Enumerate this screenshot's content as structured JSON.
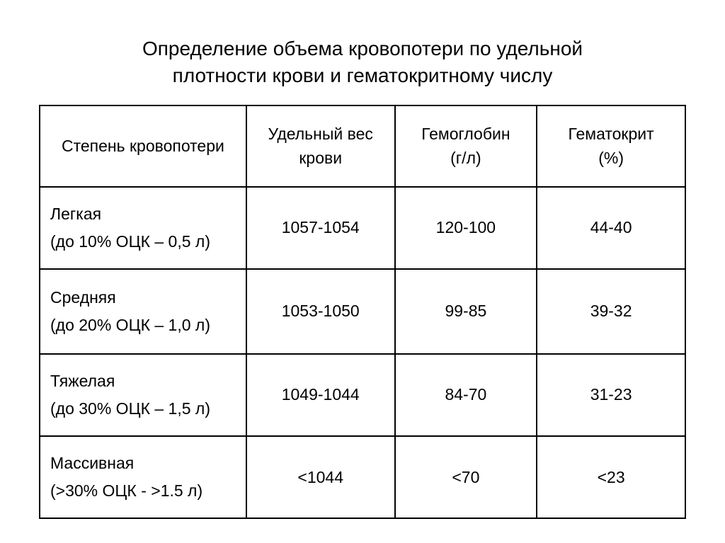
{
  "title_line1": "Определение объема кровопотери по удельной",
  "title_line2": "плотности крови и гематокритному числу",
  "table": {
    "headers": {
      "col1": "Степень кровопотери",
      "col2_line1": "Удельный вес",
      "col2_line2": "крови",
      "col3_line1": "Гемоглобин",
      "col3_line2": "(г/л)",
      "col4_line1": "Гематокрит",
      "col4_line2": "(%)"
    },
    "rows": [
      {
        "degree_line1": "Легкая",
        "degree_line2": "(до 10% ОЦК – 0,5 л)",
        "specific_weight": "1057-1054",
        "hemoglobin": "120-100",
        "hematocrit": "44-40"
      },
      {
        "degree_line1": "Средняя",
        "degree_line2": "(до 20% ОЦК – 1,0 л)",
        "specific_weight": "1053-1050",
        "hemoglobin": "99-85",
        "hematocrit": "39-32"
      },
      {
        "degree_line1": "Тяжелая",
        "degree_line2": "(до 30% ОЦК – 1,5 л)",
        "specific_weight": "1049-1044",
        "hemoglobin": "84-70",
        "hematocrit": "31-23"
      },
      {
        "degree_line1": "Массивная",
        "degree_line2": "(>30% ОЦК - >1.5 л)",
        "specific_weight": "<1044",
        "hemoglobin": "<70",
        "hematocrit": "<23"
      }
    ]
  },
  "styling": {
    "background_color": "#ffffff",
    "text_color": "#000000",
    "border_color": "#000000",
    "border_width": 2,
    "title_fontsize": 28,
    "cell_fontsize": 23,
    "font_family": "Arial"
  }
}
